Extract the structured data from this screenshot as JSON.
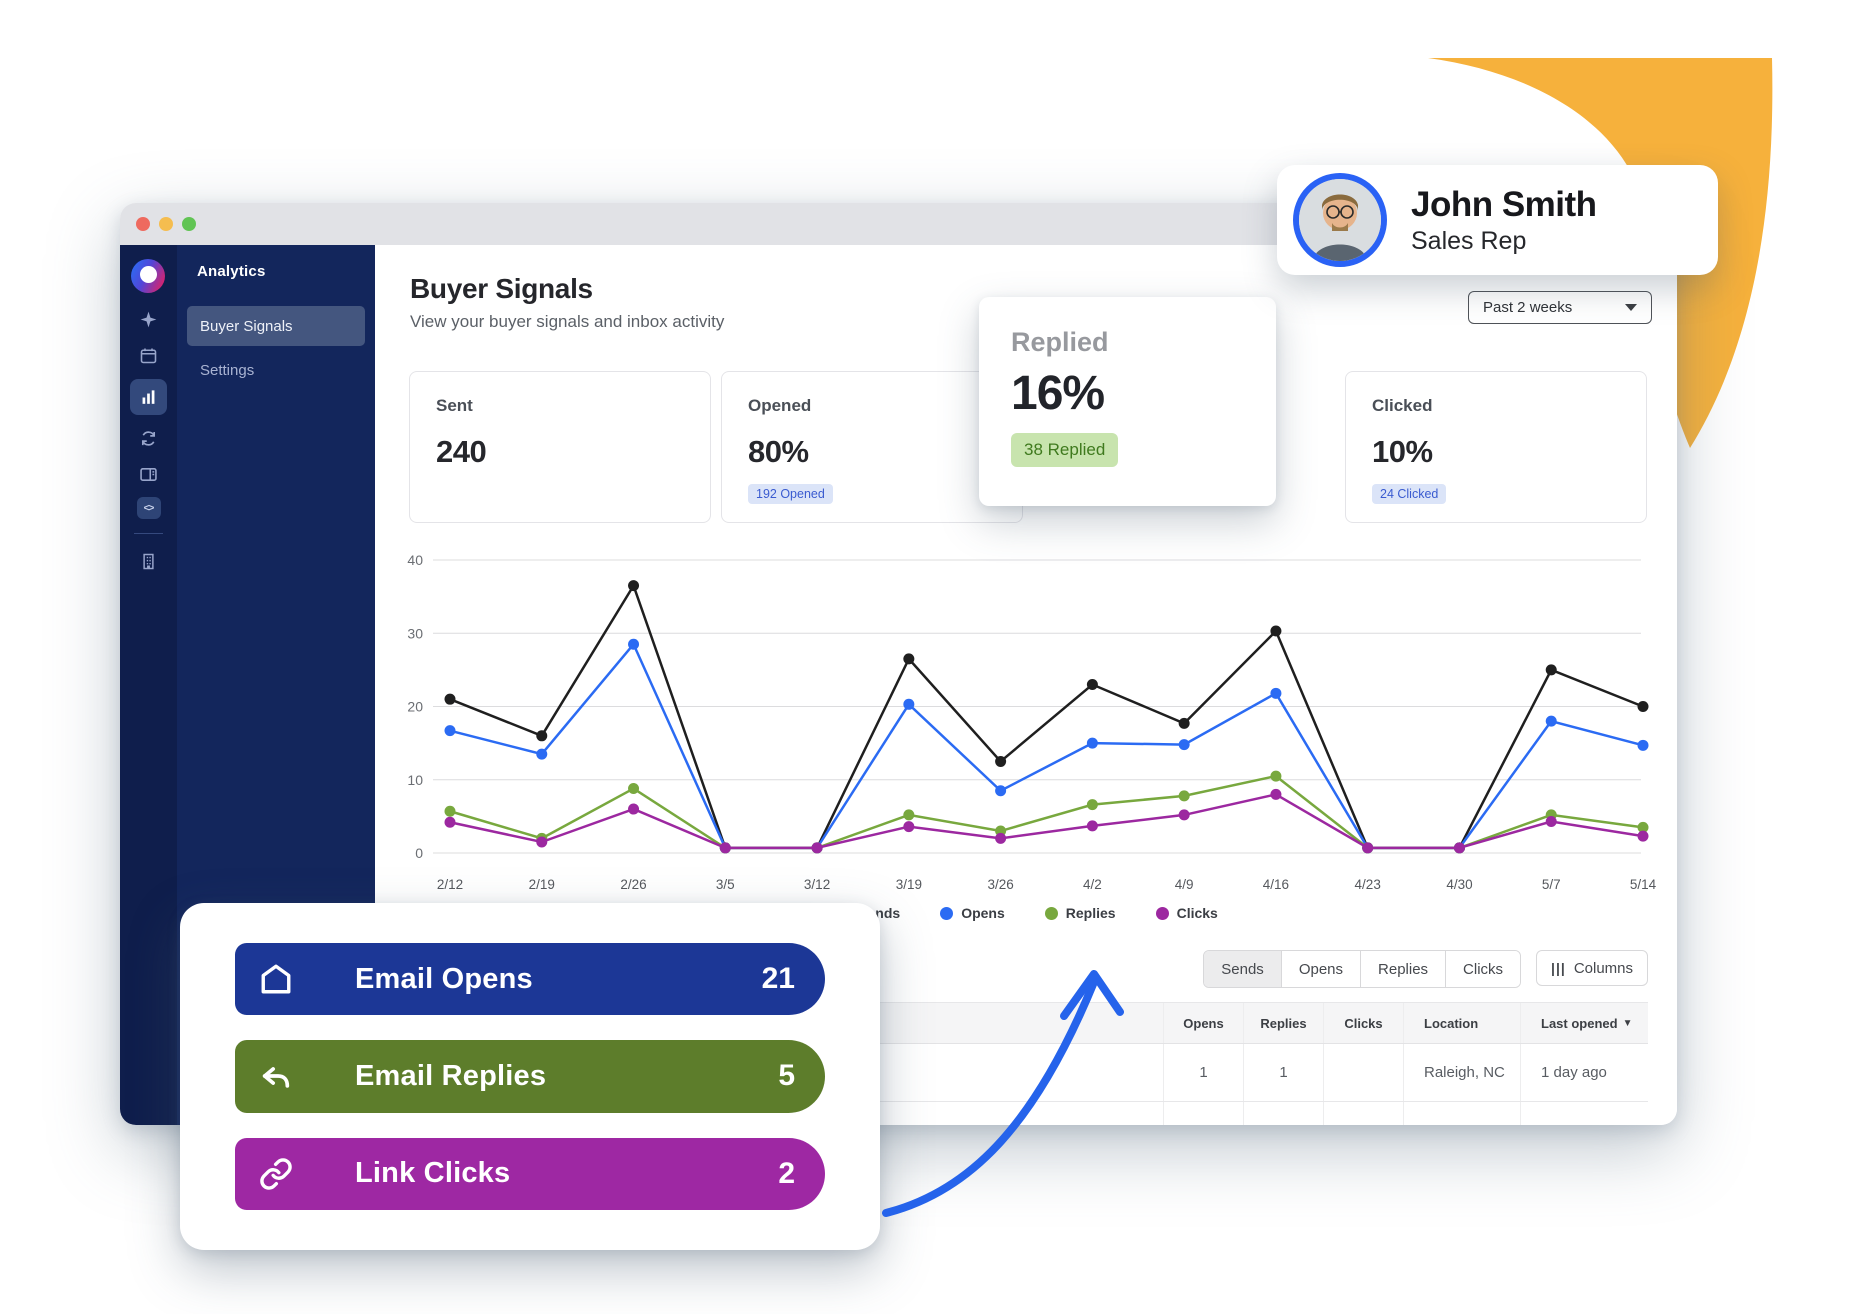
{
  "window": {
    "traffic_lights": [
      "#ee6a5f",
      "#f5bd4f",
      "#61c454"
    ]
  },
  "sidebar": {
    "header": "Analytics",
    "items": [
      {
        "label": "Buyer Signals",
        "active": true
      },
      {
        "label": "Settings",
        "active": false
      }
    ],
    "rail_icons": [
      "logo",
      "sparkle-icon",
      "calendar-icon",
      "bar-chart-icon",
      "refresh-icon",
      "layout-icon",
      "code-icon",
      "building-icon"
    ]
  },
  "page": {
    "title": "Buyer Signals",
    "subtitle": "View your buyer signals and inbox activity"
  },
  "filter": {
    "label": "Past 2 weeks"
  },
  "stats": [
    {
      "label": "Sent",
      "value": "240",
      "badge": ""
    },
    {
      "label": "Opened",
      "value": "80%",
      "badge": "192 Opened"
    },
    {
      "label": "Replied",
      "value": "16%",
      "badge": "38 Replied"
    },
    {
      "label": "Clicked",
      "value": "10%",
      "badge": "24 Clicked"
    }
  ],
  "chart_data": {
    "type": "line",
    "x": [
      "2/12",
      "2/19",
      "2/26",
      "3/5",
      "3/12",
      "3/19",
      "3/26",
      "4/2",
      "4/9",
      "4/16",
      "4/23",
      "4/30",
      "5/7",
      "5/14"
    ],
    "ylim": [
      0,
      40
    ],
    "yticks": [
      0,
      10,
      20,
      30,
      40
    ],
    "grid": true,
    "legend_position": "bottom",
    "series": [
      {
        "name": "Sends",
        "color": "#1f1f1f",
        "values": [
          21,
          16,
          36.5,
          0.7,
          0.7,
          26.5,
          12.5,
          23,
          17.7,
          30.3,
          0.7,
          0.7,
          25,
          20
        ]
      },
      {
        "name": "Opens",
        "color": "#2b6bf3",
        "values": [
          16.7,
          13.5,
          28.5,
          0.7,
          0.7,
          20.3,
          8.5,
          15,
          14.8,
          21.8,
          0.7,
          0.7,
          18,
          14.7
        ]
      },
      {
        "name": "Replies",
        "color": "#78a83e",
        "values": [
          5.7,
          2,
          8.8,
          0.7,
          0.7,
          5.2,
          3,
          6.6,
          7.8,
          10.5,
          0.7,
          0.7,
          5.2,
          3.5
        ]
      },
      {
        "name": "Clicks",
        "color": "#9c28a0",
        "values": [
          4.2,
          1.5,
          6,
          0.7,
          0.7,
          3.6,
          2,
          3.7,
          5.2,
          8,
          0.7,
          0.7,
          4.3,
          2.3
        ]
      }
    ]
  },
  "toolbar": {
    "segments": [
      "Sends",
      "Opens",
      "Replies",
      "Clicks"
    ],
    "active_segment": "Sends",
    "columns_icon": "|||",
    "columns_label": "Columns"
  },
  "table": {
    "headers": [
      "Opens",
      "Replies",
      "Clicks",
      "Location",
      "Last opened"
    ],
    "sort_indicator": "▼",
    "rows": [
      {
        "opens": "1",
        "replies": "1",
        "clicks": "",
        "location": "Raleigh, NC",
        "last_opened": "1 day ago"
      }
    ]
  },
  "overlay": {
    "pills": [
      {
        "label": "Email Opens",
        "value": "21",
        "color": "#1c3796"
      },
      {
        "label": "Email Replies",
        "value": "5",
        "color": "#5d7d2b"
      },
      {
        "label": "Link Clicks",
        "value": "2",
        "color": "#9e28a3"
      }
    ]
  },
  "profile": {
    "name": "John Smith",
    "role": "Sales Rep"
  },
  "colors": {
    "yellow_deco": "#f6b13c",
    "arrow_blue": "#2563eb",
    "sidebar_rail": "#0f1e4c",
    "sidebar_panel": "#13265c"
  }
}
